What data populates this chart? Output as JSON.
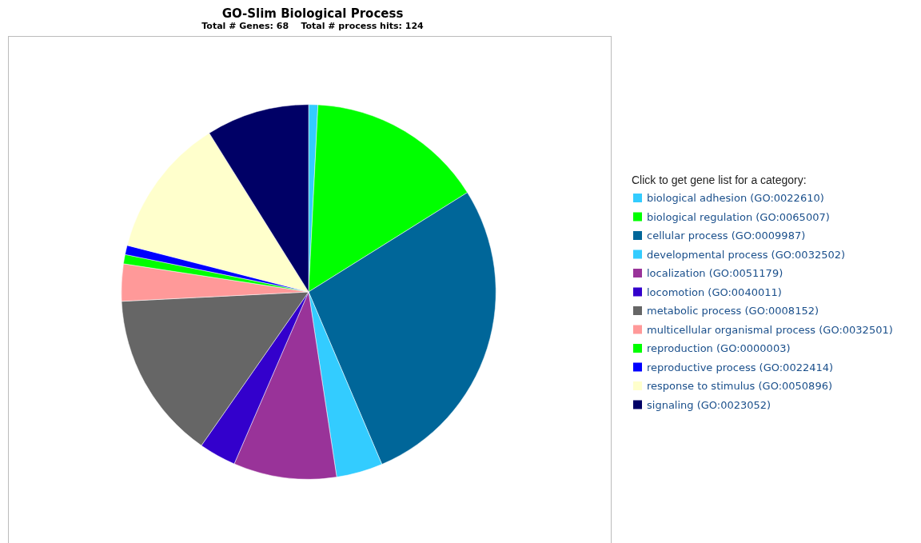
{
  "chart_data": {
    "type": "pie",
    "title": "GO-Slim Biological Process",
    "subtitle": "Total # Genes: 68    Total # process hits: 124",
    "legend_title": "Click to get gene list for a category:",
    "legend": "right",
    "categories": [
      "biological adhesion (GO:0022610)",
      "biological regulation (GO:0065007)",
      "cellular process (GO:0009987)",
      "developmental process (GO:0032502)",
      "localization (GO:0051179)",
      "locomotion (GO:0040011)",
      "metabolic process (GO:0008152)",
      "multicellular organismal process (GO:0032501)",
      "reproduction (GO:0000003)",
      "reproductive process (GO:0022414)",
      "response to stimulus (GO:0050896)",
      "signaling (GO:0023052)"
    ],
    "values": [
      0.8,
      15.3,
      27.5,
      4.0,
      8.9,
      3.2,
      14.5,
      3.2,
      0.8,
      0.8,
      12.1,
      8.9
    ],
    "colors": [
      "#33ccff",
      "#00ff00",
      "#006699",
      "#33ccff",
      "#993399",
      "#3300cc",
      "#666666",
      "#ff9999",
      "#00ff00",
      "#0000ff",
      "#ffffcc",
      "#000066"
    ]
  }
}
